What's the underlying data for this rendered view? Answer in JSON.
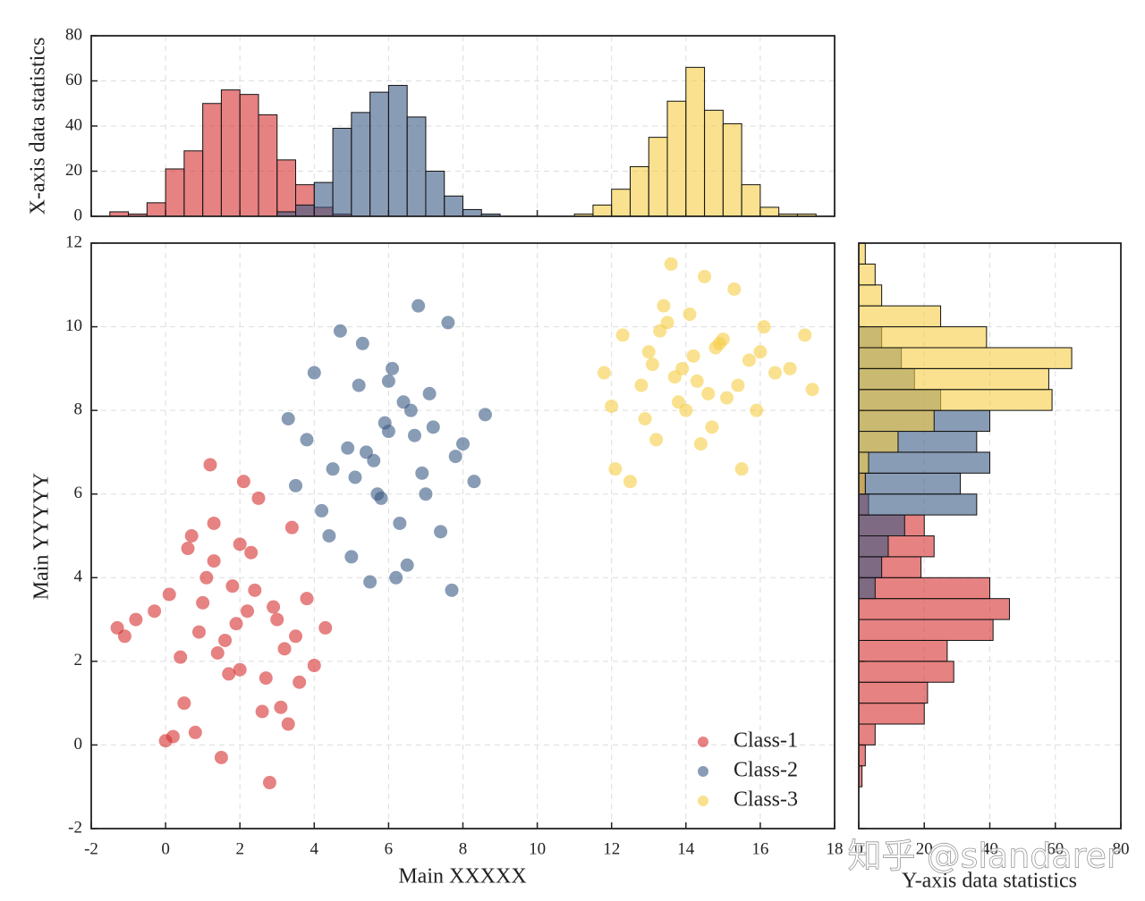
{
  "chart_data": [
    {
      "type": "scatter",
      "xlabel": "Main XXXXX",
      "ylabel": "Main YYYYY",
      "xlim": [
        -2,
        18
      ],
      "ylim": [
        -2,
        12
      ],
      "xticks": [
        -2,
        0,
        2,
        4,
        6,
        8,
        10,
        12,
        14,
        16,
        18
      ],
      "yticks": [
        -2,
        0,
        2,
        4,
        6,
        8,
        10,
        12
      ],
      "grid": true,
      "legend": "lower right",
      "series": [
        {
          "name": "Class-1",
          "color": "#d62f2f",
          "x": [
            -1.3,
            -1.1,
            -0.8,
            -0.3,
            0,
            0.2,
            0.5,
            0.6,
            0.8,
            1,
            1.2,
            1.3,
            1.5,
            1.6,
            1.8,
            2,
            2.1,
            2.3,
            2.5,
            2.6,
            2.8,
            3,
            3.2,
            3.4,
            3.6,
            3.8,
            4,
            4.3,
            1.3,
            0.4,
            1.9,
            2.7,
            2.2,
            1.1,
            0.9,
            3.1,
            1.7,
            2.4,
            3.5,
            0.1,
            1.4,
            2.9,
            2.0,
            3.3,
            0.7
          ],
          "y": [
            2.8,
            2.6,
            3.0,
            3.2,
            0.1,
            0.2,
            1.0,
            4.7,
            0.3,
            3.4,
            6.7,
            5.3,
            -0.3,
            2.5,
            3.8,
            1.8,
            6.3,
            4.6,
            5.9,
            0.8,
            -0.9,
            3.0,
            2.3,
            5.2,
            1.5,
            3.5,
            1.9,
            2.8,
            4.4,
            2.1,
            2.9,
            1.6,
            3.2,
            4.0,
            2.7,
            0.9,
            1.7,
            3.7,
            2.6,
            3.6,
            2.2,
            3.3,
            4.8,
            0.5,
            5.0
          ]
        },
        {
          "name": "Class-2",
          "color": "#3b5a84",
          "x": [
            3.3,
            3.5,
            3.8,
            4,
            4.2,
            4.5,
            4.7,
            5,
            5.2,
            5.4,
            5.5,
            5.7,
            6,
            6.1,
            6.3,
            6.5,
            6.6,
            6.8,
            7,
            7.2,
            7.4,
            7.6,
            7.8,
            8,
            8.3,
            8.6,
            5.1,
            5.9,
            6.4,
            4.9,
            5.6,
            6.9,
            6.2,
            5.3,
            7.1,
            4.4,
            6.7,
            5.8,
            6.0,
            7.7
          ],
          "y": [
            7.8,
            6.2,
            7.3,
            8.9,
            5.6,
            6.6,
            9.9,
            4.5,
            8.6,
            7.0,
            3.9,
            6.0,
            7.5,
            9.0,
            5.3,
            4.3,
            8.0,
            10.5,
            6.0,
            7.6,
            5.1,
            10.1,
            6.9,
            7.2,
            6.3,
            7.9,
            6.4,
            7.7,
            8.2,
            7.1,
            6.8,
            6.5,
            4.0,
            9.6,
            8.4,
            5.0,
            7.4,
            5.9,
            8.7,
            3.7
          ]
        },
        {
          "name": "Class-3",
          "color": "#f5cd45",
          "x": [
            11.8,
            12,
            12.1,
            12.3,
            12.5,
            12.8,
            13,
            13.2,
            13.4,
            13.6,
            13.8,
            13.9,
            14.1,
            14.3,
            14.5,
            14.7,
            14.9,
            15.1,
            15.3,
            15.5,
            15.7,
            15.9,
            16.1,
            16.4,
            16.8,
            17.2,
            17.4,
            13.7,
            14.2,
            14.6,
            13.1,
            15.0,
            14.0,
            13.5,
            14.8,
            12.9,
            15.4,
            13.3,
            14.4,
            16.0
          ],
          "y": [
            8.9,
            8.1,
            6.6,
            9.8,
            6.3,
            8.6,
            9.4,
            7.3,
            10.5,
            11.5,
            8.2,
            9.0,
            10.3,
            8.7,
            11.2,
            7.6,
            9.6,
            8.3,
            10.9,
            6.6,
            9.2,
            8.0,
            10.0,
            8.9,
            9.0,
            9.8,
            8.5,
            8.8,
            9.3,
            8.4,
            9.1,
            9.7,
            8.0,
            10.1,
            9.5,
            7.8,
            8.6,
            9.9,
            7.2,
            9.4
          ]
        }
      ]
    },
    {
      "type": "histogram",
      "orientation": "vertical",
      "ylabel": "X-axis data statistics",
      "xlim": [
        -2,
        18
      ],
      "ylim": [
        0,
        80
      ],
      "xticks": [
        -2,
        0,
        2,
        4,
        6,
        8,
        10,
        12,
        14,
        16,
        18
      ],
      "xticklabels": false,
      "yticks": [
        0,
        20,
        40,
        60,
        80
      ],
      "grid": true,
      "series": [
        {
          "color": "#d62f2f",
          "bins": [
            -1.5,
            -1,
            -0.5,
            0,
            0.5,
            1,
            1.5,
            2,
            2.5,
            3,
            3.5,
            4,
            4.5,
            5
          ],
          "counts": [
            2,
            1,
            6,
            21,
            29,
            50,
            56,
            54,
            45,
            25,
            14,
            4,
            1
          ]
        },
        {
          "color": "#3b5a84",
          "bins": [
            3,
            3.5,
            4,
            4.5,
            5,
            5.5,
            6,
            6.5,
            7,
            7.5,
            8,
            8.5,
            9
          ],
          "counts": [
            2,
            5,
            15,
            39,
            46,
            55,
            58,
            44,
            20,
            9,
            3,
            1
          ]
        },
        {
          "color": "#f5cd45",
          "bins": [
            11,
            11.5,
            12,
            12.5,
            13,
            13.5,
            14,
            14.5,
            15,
            15.5,
            16,
            16.5,
            17,
            17.5
          ],
          "counts": [
            1,
            5,
            12,
            22,
            35,
            51,
            66,
            47,
            41,
            14,
            4,
            1,
            1
          ]
        }
      ]
    },
    {
      "type": "histogram",
      "orientation": "horizontal",
      "xlabel": "Y-axis data statistics",
      "xlim": [
        0,
        80
      ],
      "ylim": [
        -2,
        12
      ],
      "xticks": [
        0,
        20,
        40,
        60,
        80
      ],
      "yticks": [
        -2,
        0,
        2,
        4,
        6,
        8,
        10,
        12
      ],
      "yticklabels": false,
      "grid": true,
      "series": [
        {
          "color": "#d62f2f",
          "bins": [
            -1,
            -0.5,
            0,
            0.5,
            1,
            1.5,
            2,
            2.5,
            3,
            3.5,
            4,
            4.5,
            5,
            5.5,
            6,
            6.5
          ],
          "counts": [
            1,
            2,
            5,
            20,
            21,
            29,
            27,
            41,
            46,
            40,
            19,
            23,
            20,
            3,
            2
          ]
        },
        {
          "color": "#3b5a84",
          "bins": [
            3.5,
            4,
            4.5,
            5,
            5.5,
            6,
            6.5,
            7,
            7.5,
            8,
            8.5,
            9,
            9.5,
            10
          ],
          "counts": [
            5,
            7,
            9,
            14,
            36,
            31,
            40,
            36,
            40,
            25,
            17,
            13,
            7
          ]
        },
        {
          "color": "#f5cd45",
          "bins": [
            6,
            6.5,
            7,
            7.5,
            8,
            8.5,
            9,
            9.5,
            10,
            10.5,
            11,
            11.5,
            12
          ],
          "counts": [
            2,
            3,
            12,
            23,
            59,
            58,
            65,
            39,
            25,
            7,
            5,
            2
          ]
        }
      ]
    }
  ],
  "watermark": "知乎 @slandarer"
}
